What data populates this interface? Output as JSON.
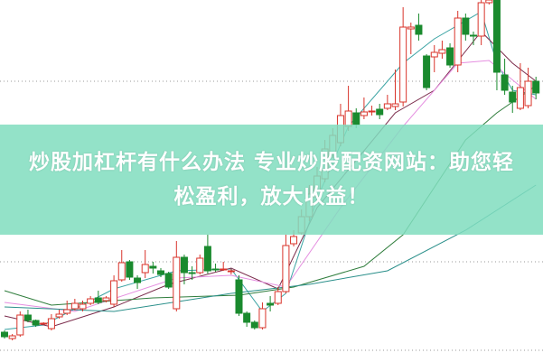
{
  "headline": {
    "line1": "炒股加杠杆有什么办法 专业炒股配资网站：助您轻",
    "line2": "松盈利，放大收益！"
  },
  "colors": {
    "up": "#d9342b",
    "down": "#1a8a2e",
    "banner": "#80ddbe",
    "grid": "#999999",
    "ma": [
      "#3aa3a3",
      "#7a2a4a",
      "#e58ee0",
      "#2f7d3c",
      "#2a8f8a"
    ]
  },
  "chart_data": {
    "type": "candlestick",
    "title": "",
    "xlabel": "",
    "ylabel": "",
    "grid": true,
    "candles": [
      [
        32,
        27,
        34,
        25
      ],
      [
        25,
        28,
        30,
        23
      ],
      [
        29,
        51,
        55,
        27
      ],
      [
        51,
        45,
        57,
        43
      ],
      [
        45,
        40,
        46,
        38
      ],
      [
        42,
        42,
        43,
        41
      ],
      [
        36,
        47,
        52,
        34
      ],
      [
        49,
        52,
        57,
        47
      ],
      [
        53,
        57,
        67,
        51
      ],
      [
        58,
        64,
        69,
        56
      ],
      [
        58,
        63,
        67,
        55
      ],
      [
        64,
        69,
        72,
        62
      ],
      [
        70,
        65,
        78,
        63
      ],
      [
        67,
        70,
        72,
        65
      ],
      [
        63,
        89,
        95,
        60
      ],
      [
        90,
        109,
        123,
        88
      ],
      [
        110,
        93,
        112,
        90
      ],
      [
        92,
        87,
        95,
        80
      ],
      [
        98,
        107,
        123,
        92
      ],
      [
        105,
        103,
        110,
        97
      ],
      [
        100,
        96,
        103,
        93
      ],
      [
        97,
        82,
        99,
        80
      ],
      [
        58,
        115,
        133,
        55
      ],
      [
        115,
        98,
        118,
        85
      ],
      [
        98,
        97,
        105,
        90
      ],
      [
        98,
        114,
        118,
        96
      ],
      [
        127,
        100,
        140,
        97
      ],
      [
        102,
        101,
        108,
        99
      ],
      [
        102,
        102,
        110,
        100
      ],
      [
        99,
        100,
        102,
        96
      ],
      [
        90,
        53,
        95,
        50
      ],
      [
        53,
        43,
        55,
        38
      ],
      [
        43,
        37,
        45,
        35
      ],
      [
        37,
        58,
        65,
        35
      ],
      [
        64,
        62,
        72,
        55
      ],
      [
        64,
        77,
        82,
        62
      ],
      [
        77,
        128,
        140,
        75
      ],
      [
        130,
        138,
        145,
        127
      ],
      [
        142,
        160,
        168,
        140
      ],
      [
        160,
        185,
        195,
        155
      ],
      [
        182,
        205,
        215,
        178
      ],
      [
        202,
        235,
        245,
        198
      ],
      [
        230,
        250,
        258,
        225
      ],
      [
        242,
        272,
        285,
        238
      ],
      [
        260,
        277,
        305,
        255
      ],
      [
        275,
        262,
        280,
        258
      ],
      [
        272,
        276,
        292,
        268
      ],
      [
        276,
        277,
        283,
        272
      ],
      [
        279,
        273,
        285,
        268
      ],
      [
        280,
        285,
        295,
        278
      ],
      [
        282,
        285,
        323,
        278
      ],
      [
        287,
        370,
        392,
        282
      ],
      [
        368,
        370,
        375,
        340
      ],
      [
        372,
        362,
        385,
        355
      ],
      [
        338,
        303,
        340,
        300
      ],
      [
        337,
        342,
        350,
        320
      ],
      [
        341,
        345,
        355,
        335
      ],
      [
        347,
        328,
        352,
        325
      ],
      [
        328,
        380,
        388,
        320
      ],
      [
        380,
        362,
        385,
        355
      ],
      [
        361,
        360,
        365,
        350
      ],
      [
        360,
        397,
        400,
        350
      ],
      [
        397,
        400,
        400,
        395
      ],
      [
        400,
        320,
        400,
        300
      ],
      [
        317,
        300,
        335,
        295
      ],
      [
        298,
        287,
        305,
        275
      ],
      [
        280,
        303,
        330,
        278
      ],
      [
        283,
        310,
        325,
        280
      ],
      [
        310,
        297,
        315,
        290
      ]
    ],
    "moving_averages": [
      [
        [
          1,
          35
        ],
        [
          6,
          40
        ],
        [
          15,
          80
        ],
        [
          23,
          100
        ],
        [
          30,
          102
        ],
        [
          34,
          55
        ],
        [
          37,
          75
        ],
        [
          41,
          180
        ],
        [
          45,
          260
        ],
        [
          52,
          330
        ],
        [
          56,
          357
        ],
        [
          62,
          387
        ],
        [
          64,
          330
        ],
        [
          66,
          300
        ],
        [
          69,
          295
        ]
      ],
      [
        [
          1,
          50
        ],
        [
          7,
          38
        ],
        [
          15,
          60
        ],
        [
          22,
          85
        ],
        [
          30,
          103
        ],
        [
          36,
          80
        ],
        [
          41,
          170
        ],
        [
          51,
          275
        ],
        [
          56,
          300
        ],
        [
          62,
          365
        ],
        [
          66,
          330
        ],
        [
          69,
          310
        ]
      ],
      [
        [
          1,
          65
        ],
        [
          10,
          55
        ],
        [
          23,
          92
        ],
        [
          30,
          95
        ],
        [
          37,
          82
        ],
        [
          44,
          170
        ],
        [
          52,
          260
        ],
        [
          59,
          330
        ],
        [
          63,
          333
        ],
        [
          69,
          290
        ]
      ],
      [
        [
          1,
          78
        ],
        [
          7,
          62
        ],
        [
          20,
          70
        ],
        [
          31,
          73
        ],
        [
          38,
          82
        ],
        [
          47,
          105
        ],
        [
          52,
          140
        ],
        [
          60,
          245
        ],
        [
          64,
          275
        ],
        [
          69,
          305
        ]
      ],
      [
        [
          1,
          60
        ],
        [
          15,
          55
        ],
        [
          30,
          75
        ],
        [
          40,
          85
        ],
        [
          50,
          100
        ],
        [
          60,
          145
        ],
        [
          69,
          195
        ]
      ]
    ],
    "ylim": [
      0,
      400
    ],
    "gridlines": [
      110,
      310,
      12
    ]
  }
}
